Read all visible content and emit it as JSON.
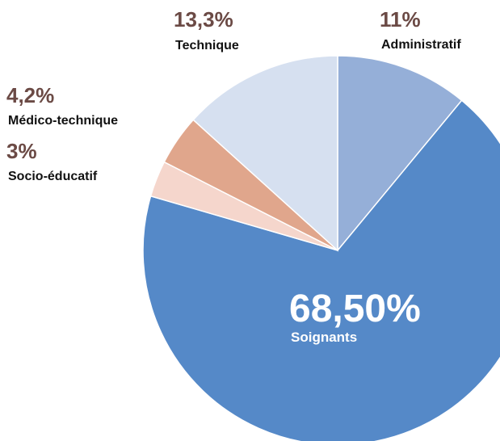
{
  "chart_data": {
    "type": "pie",
    "categories": [
      "Administratif",
      "Soignants",
      "Socio-éducatif",
      "Médico-technique",
      "Technique"
    ],
    "values": [
      11,
      68.5,
      3,
      4.2,
      13.3
    ],
    "value_labels": [
      "11%",
      "68,50%",
      "3%",
      "4,2%",
      "13,3%"
    ],
    "colors": [
      "#95afd8",
      "#5589c8",
      "#f5d6cc",
      "#e0a68c",
      "#d6e0f0"
    ]
  }
}
